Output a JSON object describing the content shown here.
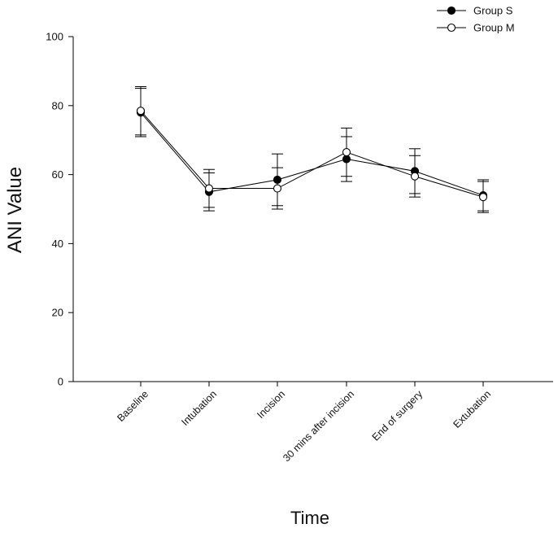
{
  "chart_data": {
    "type": "line",
    "title": "",
    "xlabel": "Time",
    "ylabel": "ANI Value",
    "ylim": [
      0,
      100
    ],
    "yticks": [
      0,
      20,
      40,
      60,
      80,
      100
    ],
    "grid": false,
    "legend_position": "top-right",
    "categories": [
      "Baseline",
      "Intubation",
      "Incision",
      "30 mins after incision",
      "End of surgery",
      "Extubation"
    ],
    "series": [
      {
        "name": "Group S",
        "marker": "filled-circle",
        "color": "#000000",
        "values": [
          78,
          55,
          58.5,
          64.5,
          61,
          54
        ],
        "error": [
          7,
          5.5,
          7.5,
          6.5,
          6.5,
          4.5
        ]
      },
      {
        "name": "Group M",
        "marker": "open-circle",
        "color": "#000000",
        "values": [
          78.5,
          56,
          56,
          66.5,
          59.5,
          53.5
        ],
        "error": [
          7,
          5.5,
          6,
          7,
          6,
          4.5
        ]
      }
    ]
  }
}
